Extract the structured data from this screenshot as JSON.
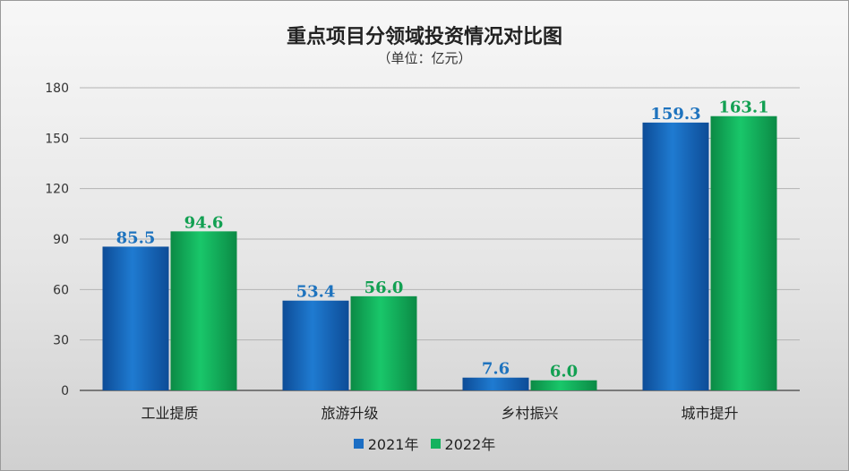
{
  "chart_data": {
    "type": "bar",
    "title": "重点项目分领域投资情况对比图",
    "subtitle": "（单位：亿元）",
    "categories": [
      "工业提质",
      "旅游升级",
      "乡村振兴",
      "城市提升"
    ],
    "series": [
      {
        "name": "2021年",
        "values": [
          85.5,
          53.4,
          7.6,
          159.3
        ],
        "labels": [
          "85.5",
          "53.4",
          "7.6",
          "159.3"
        ],
        "color": "#1b6ec4",
        "label_color": "#1e73be"
      },
      {
        "name": "2022年",
        "values": [
          94.6,
          56.0,
          6.0,
          163.1
        ],
        "labels": [
          "94.6",
          "56.0",
          "6.0",
          "163.1"
        ],
        "color": "#13b25e",
        "label_color": "#12a052"
      }
    ],
    "ylim": [
      0,
      180
    ],
    "yticks": [
      0,
      30,
      60,
      90,
      120,
      150,
      180
    ],
    "ytick_labels": [
      "0",
      "30",
      "60",
      "90",
      "120",
      "150",
      "180"
    ],
    "grid": true,
    "legend": "bottom"
  }
}
